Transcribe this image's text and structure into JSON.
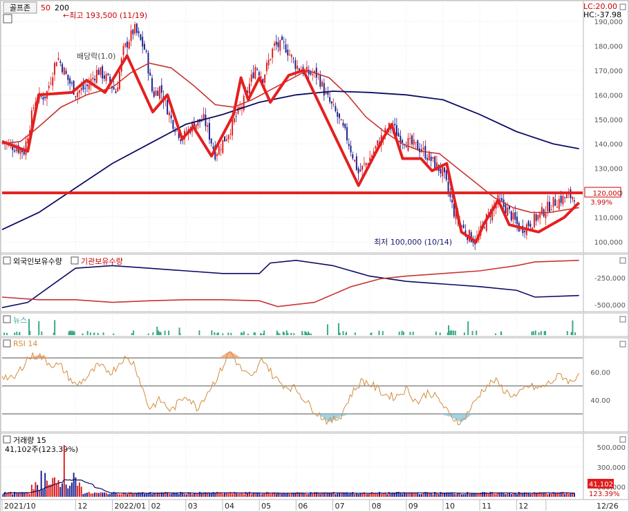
{
  "header": {
    "stock_name": "골프존",
    "ma_short": "50",
    "ma_long": "200",
    "high_label": "최고 193,500 (11/19)",
    "low_label": "최저 100,000 (10/14)",
    "dividend_label": "배당락(1.0)",
    "lc_label": "LC:20.00",
    "hc_label": "HC:-37.98"
  },
  "colors": {
    "up": "#e01c1c",
    "down": "#1c1c8c",
    "ma_short": "#c83232",
    "ma_long": "#0a0a64",
    "pattern": "#e42020",
    "rsi": "#d28c3c",
    "news": "#3aa88a",
    "grid": "#e6e6e6"
  },
  "panels": {
    "holdings_title_foreign": "외국인보유수량",
    "holdings_title_institution": "기관보유수량",
    "news_title": "뉴스",
    "rsi_title": "RSI 14",
    "volume_title": "거래량  15",
    "volume_current": "41,102주(123.39%)"
  },
  "chart_data": {
    "type": "candlestick",
    "price_axis": {
      "min": 95000,
      "max": 193500,
      "ticks": [
        "190,000",
        "180,000",
        "170,000",
        "160,000",
        "150,000",
        "140,000",
        "130,000",
        "120,000",
        "110,000",
        "100,000"
      ],
      "tick_values": [
        190000,
        180000,
        170000,
        160000,
        150000,
        140000,
        130000,
        120000,
        110000,
        100000
      ]
    },
    "resistance_line": 120000,
    "resistance_label": "120,000",
    "resistance_pct": "3.99%",
    "high": {
      "value": 193500,
      "date": "11/19"
    },
    "low": {
      "value": 100000,
      "date": "10/14"
    },
    "x_labels": [
      "2021/10",
      "12",
      "2022/01",
      "02",
      "03",
      "04",
      "05",
      "06",
      "07",
      "08",
      "09",
      "10",
      "11",
      "12",
      "12/26"
    ],
    "x_label_months": [
      0,
      2,
      3,
      4,
      5,
      6,
      7,
      8,
      9,
      10,
      11,
      12,
      13,
      14,
      14.8
    ],
    "close_path": [
      [
        0,
        141000
      ],
      [
        0.3,
        139000
      ],
      [
        0.6,
        137000
      ],
      [
        0.9,
        158000
      ],
      [
        1.2,
        160000
      ],
      [
        1.5,
        176000
      ],
      [
        1.8,
        166000
      ],
      [
        2.0,
        161000
      ],
      [
        2.3,
        163000
      ],
      [
        2.6,
        170000
      ],
      [
        2.9,
        166000
      ],
      [
        3.1,
        161000
      ],
      [
        3.3,
        178000
      ],
      [
        3.6,
        187000
      ],
      [
        3.9,
        178000
      ],
      [
        4.1,
        160000
      ],
      [
        4.3,
        163000
      ],
      [
        4.6,
        150000
      ],
      [
        4.9,
        142000
      ],
      [
        5.2,
        148000
      ],
      [
        5.5,
        150000
      ],
      [
        5.8,
        136000
      ],
      [
        6.1,
        143000
      ],
      [
        6.3,
        149000
      ],
      [
        6.6,
        158000
      ],
      [
        6.9,
        172000
      ],
      [
        7.1,
        167000
      ],
      [
        7.4,
        180000
      ],
      [
        7.7,
        180000
      ],
      [
        8.0,
        172000
      ],
      [
        8.3,
        169000
      ],
      [
        8.6,
        168000
      ],
      [
        8.8,
        160000
      ],
      [
        9.1,
        152000
      ],
      [
        9.4,
        142000
      ],
      [
        9.7,
        128000
      ],
      [
        10.0,
        134000
      ],
      [
        10.3,
        142000
      ],
      [
        10.6,
        148000
      ],
      [
        10.8,
        143000
      ],
      [
        11.1,
        140000
      ],
      [
        11.4,
        138000
      ],
      [
        11.7,
        133000
      ],
      [
        12.0,
        128000
      ],
      [
        12.3,
        112000
      ],
      [
        12.6,
        104000
      ],
      [
        12.9,
        100000
      ],
      [
        13.2,
        110000
      ],
      [
        13.5,
        117000
      ],
      [
        13.8,
        112000
      ],
      [
        14.1,
        105000
      ],
      [
        14.4,
        108000
      ],
      [
        14.7,
        112000
      ],
      [
        15.0,
        116000
      ],
      [
        15.3,
        118000
      ],
      [
        15.6,
        119000
      ]
    ],
    "pattern_line": [
      [
        0,
        141000
      ],
      [
        0.7,
        137000
      ],
      [
        1.0,
        160000
      ],
      [
        1.9,
        161000
      ],
      [
        2.3,
        166000
      ],
      [
        2.8,
        161000
      ],
      [
        3.4,
        176000
      ],
      [
        4.1,
        153000
      ],
      [
        4.5,
        160000
      ],
      [
        4.9,
        142000
      ],
      [
        5.2,
        147000
      ],
      [
        5.7,
        135000
      ],
      [
        6.3,
        152000
      ],
      [
        6.5,
        167000
      ],
      [
        6.7,
        158000
      ],
      [
        7.0,
        167000
      ],
      [
        7.3,
        157000
      ],
      [
        7.8,
        168000
      ],
      [
        8.2,
        170000
      ],
      [
        9.7,
        123000
      ],
      [
        10.4,
        143000
      ],
      [
        10.6,
        148000
      ],
      [
        10.9,
        134000
      ],
      [
        11.4,
        134000
      ],
      [
        11.7,
        129000
      ],
      [
        12.1,
        132000
      ],
      [
        12.5,
        104000
      ],
      [
        12.9,
        100000
      ],
      [
        13.1,
        107000
      ],
      [
        13.5,
        117000
      ],
      [
        13.8,
        107000
      ],
      [
        14.6,
        104000
      ],
      [
        15.3,
        110000
      ],
      [
        15.7,
        116000
      ]
    ],
    "ma50": [
      [
        0,
        140000
      ],
      [
        0.5,
        141000
      ],
      [
        1.0,
        147000
      ],
      [
        1.6,
        155000
      ],
      [
        2.3,
        160000
      ],
      [
        3.0,
        163000
      ],
      [
        3.5,
        169000
      ],
      [
        4.0,
        173000
      ],
      [
        4.6,
        171000
      ],
      [
        5.2,
        164000
      ],
      [
        5.8,
        156000
      ],
      [
        6.3,
        155000
      ],
      [
        6.8,
        158000
      ],
      [
        7.3,
        162000
      ],
      [
        7.8,
        166000
      ],
      [
        8.3,
        170000
      ],
      [
        8.9,
        167000
      ],
      [
        9.4,
        160000
      ],
      [
        9.9,
        151000
      ],
      [
        10.4,
        145000
      ],
      [
        10.9,
        140000
      ],
      [
        11.4,
        137000
      ],
      [
        11.9,
        136000
      ],
      [
        12.4,
        130000
      ],
      [
        12.9,
        124000
      ],
      [
        13.4,
        118000
      ],
      [
        13.9,
        114000
      ],
      [
        14.4,
        112000
      ],
      [
        14.9,
        112000
      ],
      [
        15.7,
        114000
      ]
    ],
    "ma200": [
      [
        0,
        105000
      ],
      [
        1.0,
        112000
      ],
      [
        2.0,
        122000
      ],
      [
        3.0,
        132000
      ],
      [
        4.0,
        140000
      ],
      [
        5.0,
        148000
      ],
      [
        6.0,
        152000
      ],
      [
        7.0,
        157000
      ],
      [
        8.0,
        160000
      ],
      [
        9.0,
        161500
      ],
      [
        10.0,
        161000
      ],
      [
        11.0,
        160000
      ],
      [
        12.0,
        158000
      ],
      [
        13.0,
        152000
      ],
      [
        14.0,
        145000
      ],
      [
        15.0,
        140000
      ],
      [
        15.7,
        138000
      ]
    ],
    "holdings": {
      "axis_ticks": [
        "-250,000",
        "-500,000"
      ],
      "foreign": [
        [
          0,
          0.95
        ],
        [
          0.7,
          0.85
        ],
        [
          1.5,
          0.45
        ],
        [
          2.0,
          0.2
        ],
        [
          3.0,
          0.15
        ],
        [
          4.0,
          0.2
        ],
        [
          5.0,
          0.25
        ],
        [
          6.0,
          0.3
        ],
        [
          7.0,
          0.3
        ],
        [
          7.3,
          0.1
        ],
        [
          8.0,
          0.05
        ],
        [
          9.0,
          0.15
        ],
        [
          10.0,
          0.35
        ],
        [
          11.0,
          0.45
        ],
        [
          12.0,
          0.5
        ],
        [
          13.0,
          0.55
        ],
        [
          14.0,
          0.62
        ],
        [
          14.5,
          0.75
        ],
        [
          15.7,
          0.72
        ]
      ],
      "institution": [
        [
          0,
          0.75
        ],
        [
          1.0,
          0.8
        ],
        [
          2.0,
          0.8
        ],
        [
          3.0,
          0.85
        ],
        [
          4.0,
          0.82
        ],
        [
          5.0,
          0.8
        ],
        [
          6.0,
          0.8
        ],
        [
          7.0,
          0.82
        ],
        [
          7.5,
          0.93
        ],
        [
          8.5,
          0.85
        ],
        [
          9.5,
          0.55
        ],
        [
          10.3,
          0.4
        ],
        [
          11.0,
          0.35
        ],
        [
          12.0,
          0.3
        ],
        [
          13.0,
          0.25
        ],
        [
          14.0,
          0.15
        ],
        [
          14.5,
          0.08
        ],
        [
          15.7,
          0.05
        ]
      ]
    },
    "rsi": {
      "period": 14,
      "levels": [
        70,
        50,
        30
      ],
      "tick_labels": [
        "60.00",
        "40.00"
      ],
      "values": [
        [
          0,
          58
        ],
        [
          0.3,
          54
        ],
        [
          0.7,
          70
        ],
        [
          1.0,
          72
        ],
        [
          1.3,
          66
        ],
        [
          1.6,
          64
        ],
        [
          2.0,
          50
        ],
        [
          2.3,
          56
        ],
        [
          2.6,
          64
        ],
        [
          3.0,
          60
        ],
        [
          3.3,
          70
        ],
        [
          3.6,
          66
        ],
        [
          4.0,
          34
        ],
        [
          4.3,
          40
        ],
        [
          4.6,
          32
        ],
        [
          5.0,
          44
        ],
        [
          5.3,
          34
        ],
        [
          5.6,
          46
        ],
        [
          5.9,
          58
        ],
        [
          6.2,
          75
        ],
        [
          6.5,
          62
        ],
        [
          6.8,
          55
        ],
        [
          7.1,
          70
        ],
        [
          7.4,
          56
        ],
        [
          7.7,
          50
        ],
        [
          8.0,
          48
        ],
        [
          8.3,
          38
        ],
        [
          8.6,
          30
        ],
        [
          8.9,
          24
        ],
        [
          9.2,
          28
        ],
        [
          9.5,
          44
        ],
        [
          9.8,
          54
        ],
        [
          10.1,
          50
        ],
        [
          10.4,
          44
        ],
        [
          10.7,
          42
        ],
        [
          11.0,
          48
        ],
        [
          11.3,
          38
        ],
        [
          11.6,
          46
        ],
        [
          11.9,
          40
        ],
        [
          12.2,
          28
        ],
        [
          12.5,
          24
        ],
        [
          12.8,
          36
        ],
        [
          13.1,
          48
        ],
        [
          13.4,
          54
        ],
        [
          13.7,
          46
        ],
        [
          14.0,
          42
        ],
        [
          14.3,
          50
        ],
        [
          14.6,
          48
        ],
        [
          14.9,
          52
        ],
        [
          15.2,
          58
        ],
        [
          15.5,
          52
        ],
        [
          15.7,
          60
        ]
      ]
    },
    "volume": {
      "axis_ticks": [
        "500,000",
        "300,000",
        "100,000"
      ],
      "tick_values": [
        500000,
        300000,
        100000
      ],
      "current": "41,102",
      "current_pct": "123.39%"
    }
  }
}
